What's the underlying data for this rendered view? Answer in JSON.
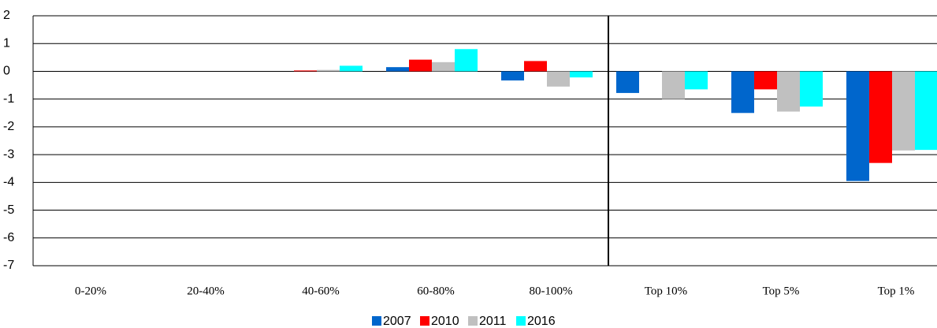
{
  "chart_data": {
    "type": "bar",
    "categories": [
      "0-20%",
      "20-40%",
      "40-60%",
      "60-80%",
      "80-100%",
      "Top 10%",
      "Top 5%",
      "Top 1%"
    ],
    "series": [
      {
        "name": "2007",
        "color": "#0066cc",
        "values": [
          0,
          0,
          0,
          0.15,
          -0.33,
          -0.78,
          -1.5,
          -3.95
        ]
      },
      {
        "name": "2010",
        "color": "#ff0000",
        "values": [
          0,
          0,
          0.03,
          0.42,
          0.37,
          0,
          -0.65,
          -3.3
        ]
      },
      {
        "name": "2011",
        "color": "#c0c0c0",
        "values": [
          0,
          0,
          0.05,
          0.33,
          -0.55,
          -1.0,
          -1.45,
          -2.85
        ]
      },
      {
        "name": "2016",
        "color": "#00ffff",
        "values": [
          0,
          0,
          0.2,
          0.8,
          -0.22,
          -0.65,
          -1.27,
          -2.83
        ]
      }
    ],
    "ylim": [
      -7,
      2
    ],
    "yticks": [
      -7,
      -6,
      -5,
      -4,
      -3,
      -2,
      -1,
      0,
      1,
      2
    ],
    "grid": true
  }
}
